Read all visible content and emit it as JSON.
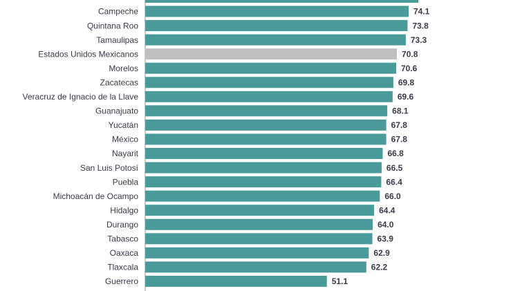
{
  "chart_data": {
    "type": "bar",
    "orientation": "horizontal",
    "title": "",
    "xlabel": "",
    "ylabel": "",
    "xlim": [
      0,
      80
    ],
    "grid": false,
    "legend": "none",
    "bar_color": "#4a9a9b",
    "highlight_color": "#bfbfbf",
    "highlight_category": "Estados Unidos Mexicanos",
    "categories": [
      "Campeche",
      "Quintana Roo",
      "Tamaulipas",
      "Estados Unidos Mexicanos",
      "Morelos",
      "Zacatecas",
      "Veracruz de Ignacio de la Llave",
      "Guanajuato",
      "Yucatán",
      "México",
      "Nayarit",
      "San Luis Potosí",
      "Puebla",
      "Michoacán de Ocampo",
      "Hidalgo",
      "Durango",
      "Tabasco",
      "Oaxaca",
      "Tlaxcala",
      "Guerrero"
    ],
    "values": [
      74.1,
      73.8,
      73.3,
      70.8,
      70.6,
      69.8,
      69.6,
      68.1,
      67.8,
      67.8,
      66.8,
      66.5,
      66.4,
      66.0,
      64.4,
      64.0,
      63.9,
      62.9,
      62.2,
      51.1
    ],
    "value_labels": [
      "74.1",
      "73.8",
      "73.3",
      "70.8",
      "70.6",
      "69.8",
      "69.6",
      "68.1",
      "67.8",
      "67.8",
      "66.8",
      "66.5",
      "66.4",
      "66.0",
      "64.4",
      "64.0",
      "63.9",
      "62.9",
      "62.2",
      "51.1"
    ]
  }
}
